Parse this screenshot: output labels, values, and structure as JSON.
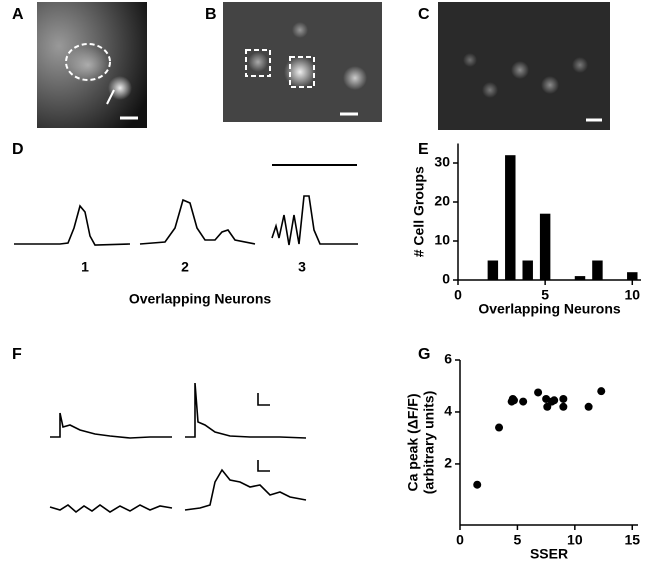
{
  "panels": {
    "letters": [
      "A",
      "B",
      "C",
      "D",
      "E",
      "F",
      "G"
    ],
    "d_labels": [
      "1",
      "2",
      "3"
    ],
    "d_xlabel": "Overlapping Neurons"
  },
  "chart_data": [
    {
      "type": "bar",
      "xlabel": "Overlapping Neurons",
      "ylabel": "# Cell Groups",
      "x": [
        2,
        3,
        4,
        5,
        7,
        8,
        10
      ],
      "values": [
        5,
        32,
        5,
        17,
        1,
        5,
        2
      ],
      "color": "#000000",
      "xlim": [
        0,
        10.5
      ],
      "ylim": [
        0,
        35
      ],
      "xticks": [
        0,
        5,
        10
      ],
      "yticks": [
        0,
        10,
        20,
        30
      ]
    },
    {
      "type": "scatter",
      "xlabel": "SSER",
      "ylabel": [
        "Ca peak (ΔF/F)",
        "(arbitrary units)"
      ],
      "x": [
        1.5,
        3.4,
        4.5,
        4.6,
        4.7,
        5.5,
        6.8,
        7.5,
        7.6,
        8,
        8.2,
        9,
        9,
        11.2,
        12.3
      ],
      "values": [
        1.2,
        3.4,
        4.4,
        4.5,
        4.45,
        4.4,
        4.75,
        4.5,
        4.2,
        4.4,
        4.45,
        4.5,
        4.2,
        4.2,
        4.8
      ],
      "color": "#000000",
      "xlim": [
        0,
        15.5
      ],
      "ylim": [
        -0.35,
        6
      ],
      "xticks": [
        0,
        5,
        10,
        15
      ],
      "yticks": [
        2,
        4,
        6
      ]
    }
  ]
}
